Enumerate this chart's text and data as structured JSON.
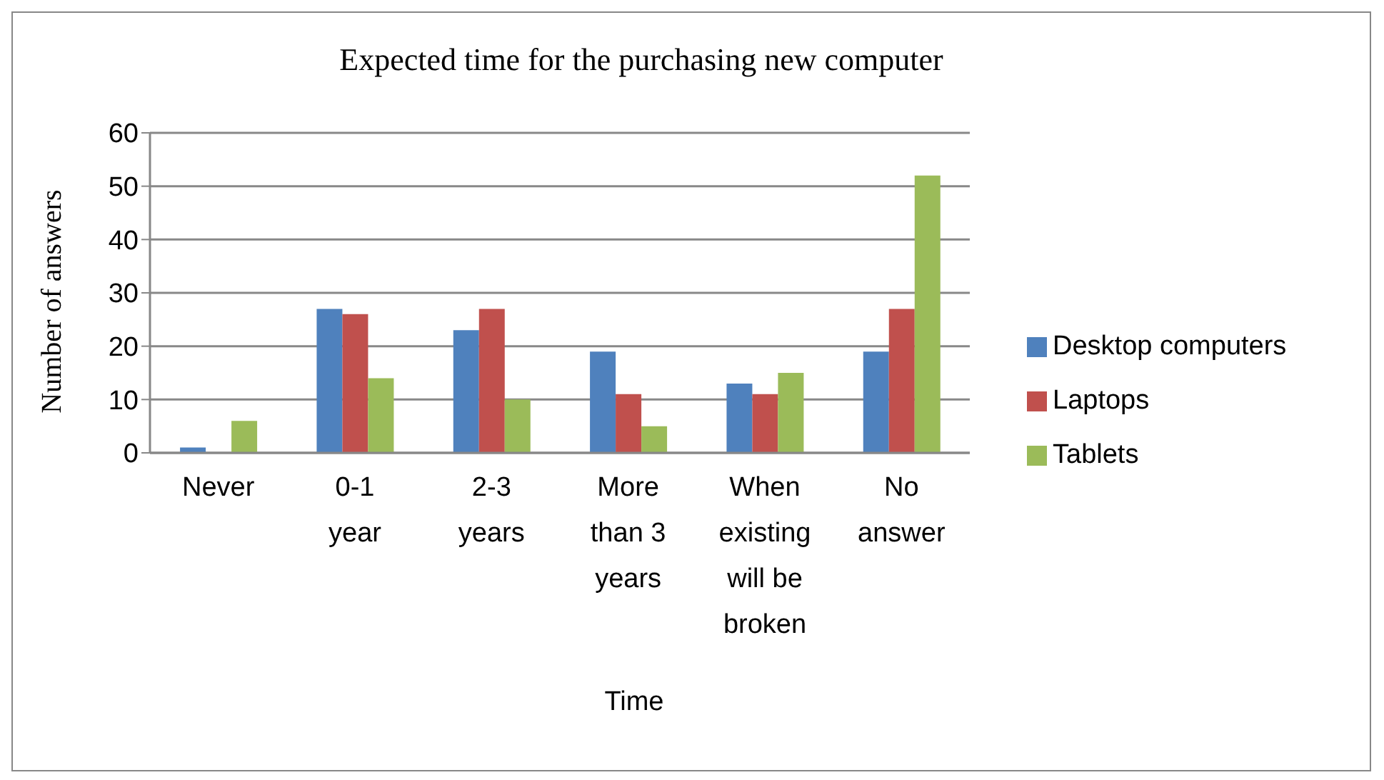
{
  "chart_data": {
    "type": "bar",
    "title": "Expected time for the purchasing new computer",
    "xlabel": "Time",
    "ylabel": "Number of answers",
    "categories": [
      "Never",
      "0-1 year",
      "2-3 years",
      "More than 3 years",
      "When existing will be broken",
      "No answer"
    ],
    "series": [
      {
        "name": "Desktop computers",
        "color": "#4f81bd",
        "values": [
          1,
          27,
          23,
          19,
          13,
          19
        ]
      },
      {
        "name": "Laptops",
        "color": "#c0504d",
        "values": [
          0,
          26,
          27,
          11,
          11,
          27
        ]
      },
      {
        "name": "Tablets",
        "color": "#9bbb59",
        "values": [
          6,
          14,
          10,
          5,
          15,
          52
        ]
      }
    ],
    "ylim": [
      0,
      60
    ],
    "yticks": [
      0,
      10,
      20,
      30,
      40,
      50,
      60
    ],
    "grid": "y",
    "legend": "right"
  }
}
